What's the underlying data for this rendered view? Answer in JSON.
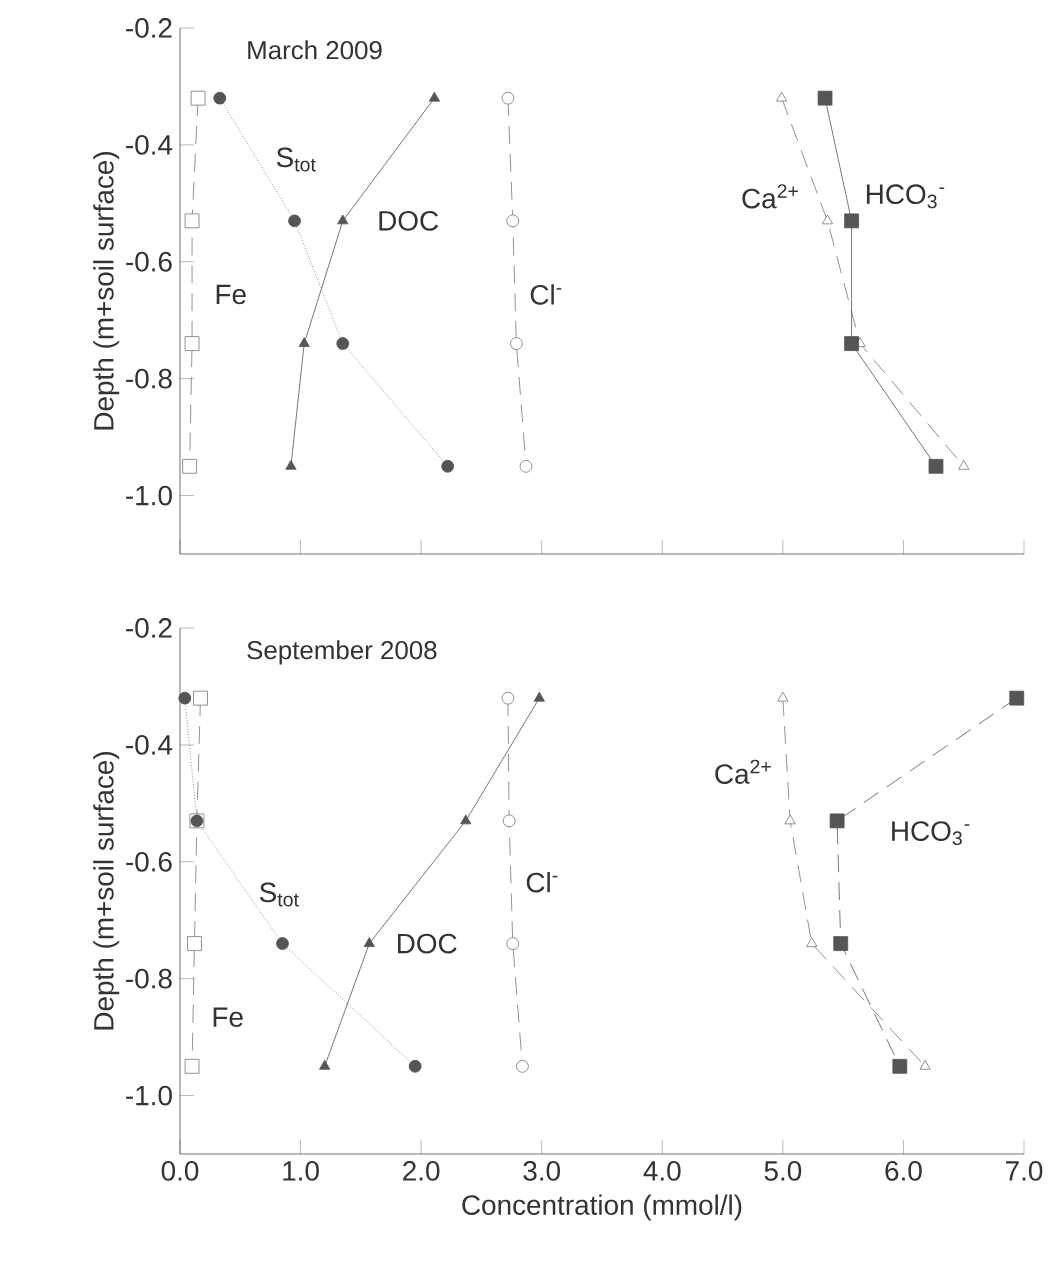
{
  "chart_data": [
    {
      "type": "line",
      "title": "March  2009",
      "ylabel": "Depth (m+soil surface)",
      "xlim": [
        0,
        7
      ],
      "ylim": [
        -1.1,
        -0.2
      ],
      "xticks": [
        0,
        1,
        2,
        3,
        4,
        5,
        6,
        7
      ],
      "yticks": [
        -0.2,
        -0.4,
        -0.6,
        -0.8,
        {
          "value": -1.0,
          "label": "-1.0"
        }
      ],
      "tick_labels": "y",
      "grid": false,
      "series": [
        {
          "name": "Fe",
          "color": "#777777",
          "marker": "square",
          "line_style": "dashed",
          "x": [
            0.15,
            0.1,
            0.1,
            0.08
          ],
          "values": [
            -0.32,
            -0.53,
            -0.74,
            -0.95
          ]
        },
        {
          "name": "S$_{tot}$",
          "color": "#555555",
          "marker": "circle",
          "line_style": "dotted",
          "x": [
            0.33,
            0.95,
            1.35,
            2.22
          ],
          "values": [
            -0.32,
            -0.53,
            -0.74,
            -0.95
          ]
        },
        {
          "name": "DOC",
          "color": "#555555",
          "marker": "triangle",
          "line_style": "solid",
          "x": [
            2.11,
            1.35,
            1.03,
            0.92
          ],
          "values": [
            -0.32,
            -0.53,
            -0.74,
            -0.95
          ]
        },
        {
          "name": "Cl$^{-}$",
          "color": "#777777",
          "marker": "circle",
          "line_style": "dashed",
          "x": [
            2.72,
            2.76,
            2.79,
            2.87
          ],
          "values": [
            -0.32,
            -0.53,
            -0.74,
            -0.95
          ]
        },
        {
          "name": "Ca$^{2+}$",
          "color": "#777777",
          "marker": "triangle",
          "line_style": "dashed",
          "x": [
            4.99,
            5.37,
            5.64,
            6.5
          ],
          "values": [
            -0.32,
            -0.53,
            -0.74,
            -0.95
          ]
        },
        {
          "name": "HCO$_{3}$$^{-}$",
          "color": "#555555",
          "marker": "square",
          "line_style": "solid",
          "x": [
            5.35,
            5.57,
            5.57,
            6.27
          ],
          "values": [
            -0.32,
            -0.53,
            -0.74,
            -0.95
          ]
        }
      ]
    },
    {
      "type": "line",
      "title": "September 2008",
      "xlabel": "Concentration (mmol/l)",
      "ylabel": "Depth (m+soil surface)",
      "xlim": [
        0,
        7
      ],
      "ylim": [
        -1.1,
        -0.2
      ],
      "xticks": [
        {
          "value": 0,
          "label": "0.0"
        },
        {
          "value": 1,
          "label": "1.0"
        },
        {
          "value": 2,
          "label": "2.0"
        },
        {
          "value": 3,
          "label": "3.0"
        },
        {
          "value": 4,
          "label": "4.0"
        },
        {
          "value": 5,
          "label": "5.0"
        },
        {
          "value": 6,
          "label": "6.0"
        },
        {
          "value": 7,
          "label": "7.0"
        }
      ],
      "yticks": [
        -0.2,
        -0.4,
        -0.6,
        -0.8,
        {
          "value": -1.0,
          "label": "-1.0"
        }
      ],
      "grid": false,
      "series": [
        {
          "name": "Fe",
          "color": "#777777",
          "marker": "square",
          "line_style": "dashed",
          "x": [
            0.17,
            0.14,
            0.12,
            0.1
          ],
          "values": [
            -0.32,
            -0.53,
            -0.74,
            -0.95
          ]
        },
        {
          "name": "S$_{tot}$",
          "color": "#555555",
          "marker": "circle",
          "line_style": "dotted",
          "x": [
            0.04,
            0.14,
            0.85,
            1.95
          ],
          "values": [
            -0.32,
            -0.53,
            -0.74,
            -0.95
          ]
        },
        {
          "name": "DOC",
          "color": "#555555",
          "marker": "triangle",
          "line_style": "solid",
          "x": [
            2.98,
            2.37,
            1.57,
            1.2
          ],
          "values": [
            -0.32,
            -0.53,
            -0.74,
            -0.95
          ]
        },
        {
          "name": "Cl$^{-}$",
          "color": "#777777",
          "marker": "circle",
          "line_style": "dashed",
          "x": [
            2.72,
            2.73,
            2.76,
            2.84
          ],
          "values": [
            -0.32,
            -0.53,
            -0.74,
            -0.95
          ]
        },
        {
          "name": "Ca$^{2+}$",
          "color": "#777777",
          "marker": "triangle",
          "line_style": "dashed",
          "x": [
            5.0,
            5.06,
            5.24,
            6.18
          ],
          "values": [
            -0.32,
            -0.53,
            -0.74,
            -0.95
          ]
        },
        {
          "name": "HCO$_{3}$$^{-}$",
          "color": "#555555",
          "marker": "square",
          "line_style": "dashed",
          "x": [
            6.94,
            5.45,
            5.48,
            5.97
          ],
          "values": [
            -0.32,
            -0.53,
            -0.74,
            -0.95
          ]
        }
      ]
    }
  ]
}
